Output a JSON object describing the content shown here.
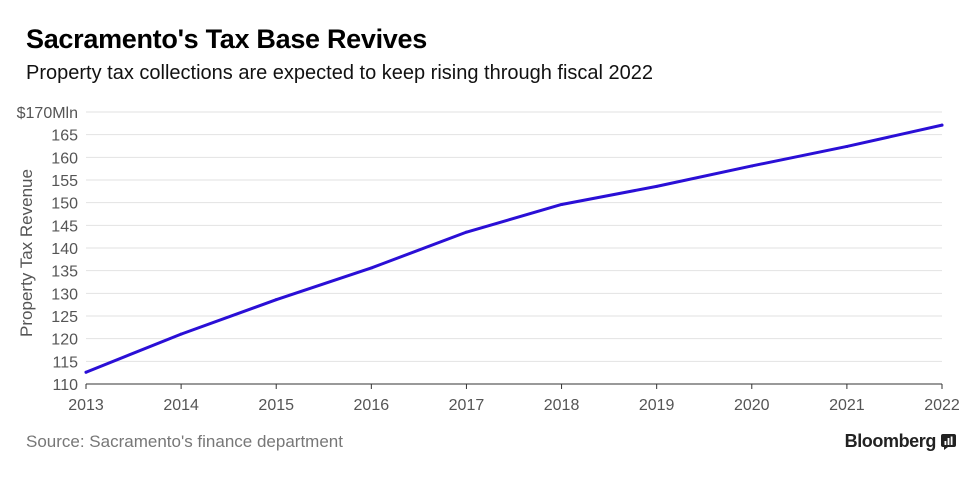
{
  "header": {
    "title": "Sacramento's Tax Base Revives",
    "subtitle": "Property tax collections are expected to keep rising through fiscal 2022"
  },
  "footer": {
    "source": "Source: Sacramento's finance department",
    "brand": "Bloomberg",
    "brand_icon": "bloomberg-chart-icon"
  },
  "colors": {
    "line": "#2a0fd6",
    "grid": "#e2e2e2",
    "axis_text": "#555555"
  },
  "chart_data": {
    "type": "line",
    "title": "Sacramento's Tax Base Revives",
    "subtitle": "Property tax collections are expected to keep rising through fiscal 2022",
    "xlabel": "",
    "ylabel": "Property Tax Revenue",
    "x": [
      2013,
      2014,
      2015,
      2016,
      2017,
      2018,
      2019,
      2020,
      2021,
      2022
    ],
    "xticks": [
      "2013",
      "2014",
      "2015",
      "2016",
      "2017",
      "2018",
      "2019",
      "2020",
      "2021",
      "2022"
    ],
    "yticks": [
      "110",
      "115",
      "120",
      "125",
      "130",
      "135",
      "140",
      "145",
      "150",
      "155",
      "160",
      "165",
      "$170Mln"
    ],
    "ylim": [
      110,
      170
    ],
    "grid": true,
    "series": [
      {
        "values": [
          112.6,
          121.0,
          128.6,
          135.6,
          143.5,
          149.6,
          153.6,
          158.1,
          162.4,
          167.1
        ]
      }
    ]
  }
}
